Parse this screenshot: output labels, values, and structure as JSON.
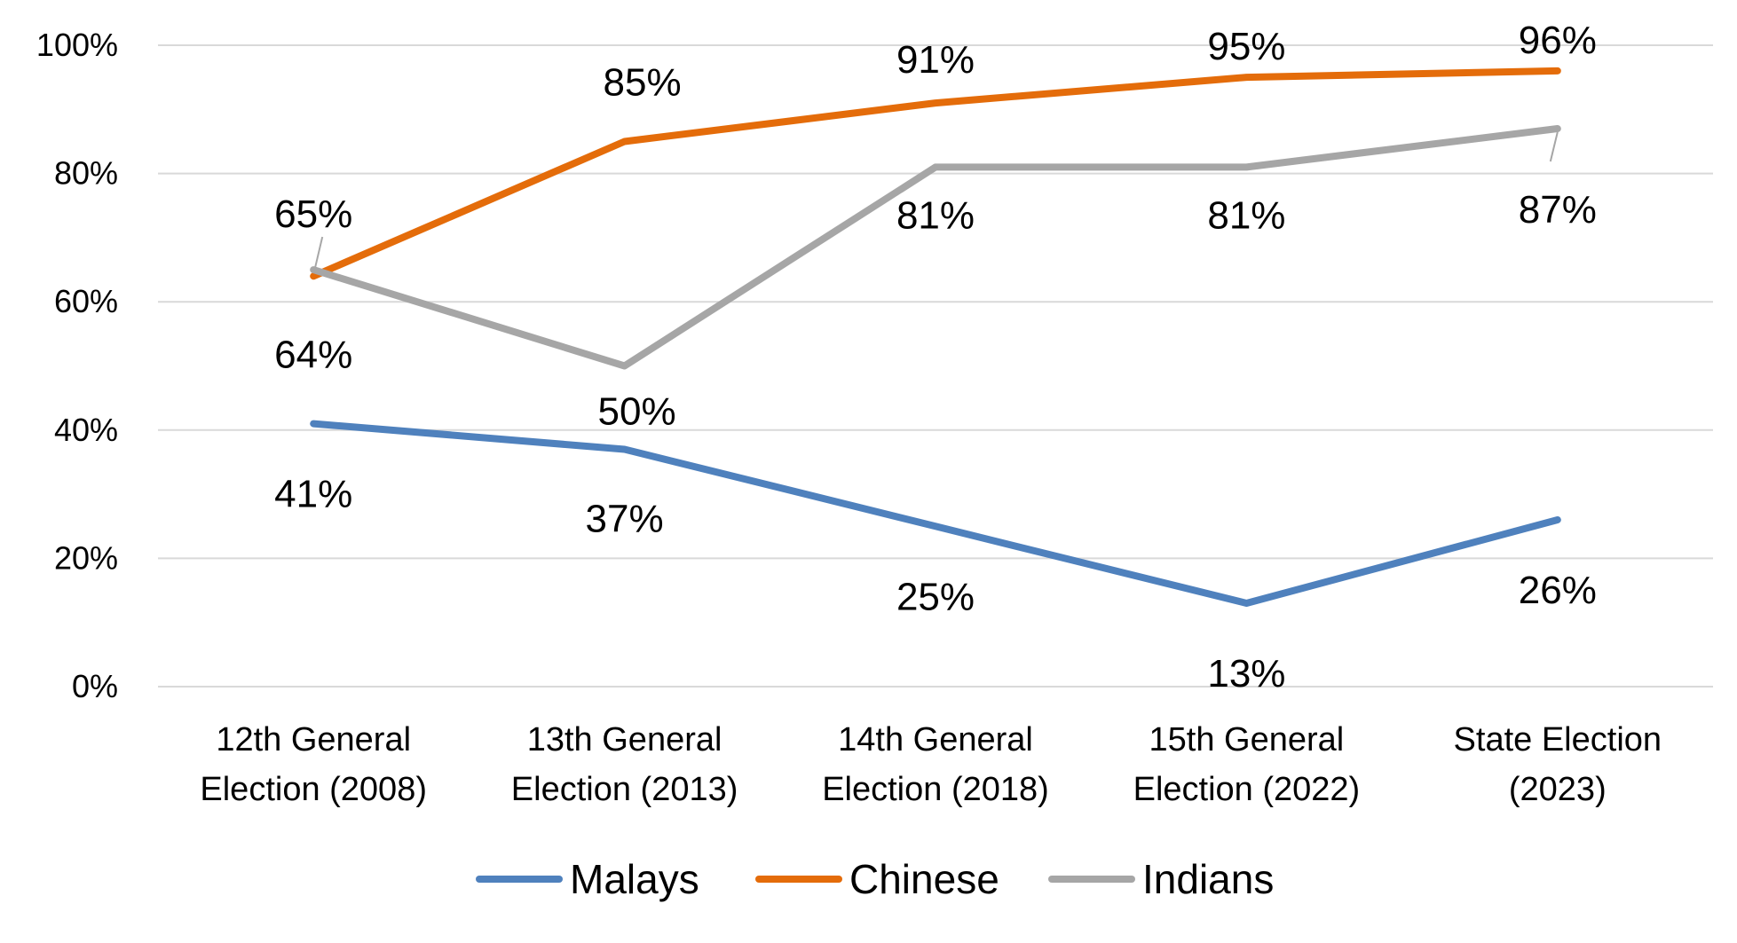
{
  "chart_data": {
    "type": "line",
    "title": "",
    "xlabel": "",
    "ylabel": "",
    "categories": [
      [
        "12th General",
        "Election (2008)"
      ],
      [
        "13th General",
        "Election (2013)"
      ],
      [
        "14th General",
        "Election (2018)"
      ],
      [
        "15th General",
        "Election (2022)"
      ],
      [
        "State Election",
        "(2023)"
      ]
    ],
    "ylim": [
      0,
      100
    ],
    "yticks": [
      0,
      20,
      40,
      60,
      80,
      100
    ],
    "ytick_labels": [
      "0%",
      "20%",
      "40%",
      "60%",
      "80%",
      "100%"
    ],
    "grid": true,
    "legend_position": "bottom",
    "series": [
      {
        "name": "Malays",
        "color": "#4f81bd",
        "values": [
          41,
          37,
          25,
          13,
          26
        ],
        "labels": [
          "41%",
          "37%",
          "25%",
          "13%",
          "26%"
        ]
      },
      {
        "name": "Chinese",
        "color": "#e46c0a",
        "values": [
          64,
          85,
          91,
          95,
          96
        ],
        "labels": [
          "64%",
          "85%",
          "91%",
          "95%",
          "96%"
        ]
      },
      {
        "name": "Indians",
        "color": "#a6a6a6",
        "values": [
          65,
          50,
          81,
          81,
          87
        ],
        "labels": [
          "65%",
          "50%",
          "81%",
          "81%",
          "87%"
        ]
      }
    ]
  }
}
